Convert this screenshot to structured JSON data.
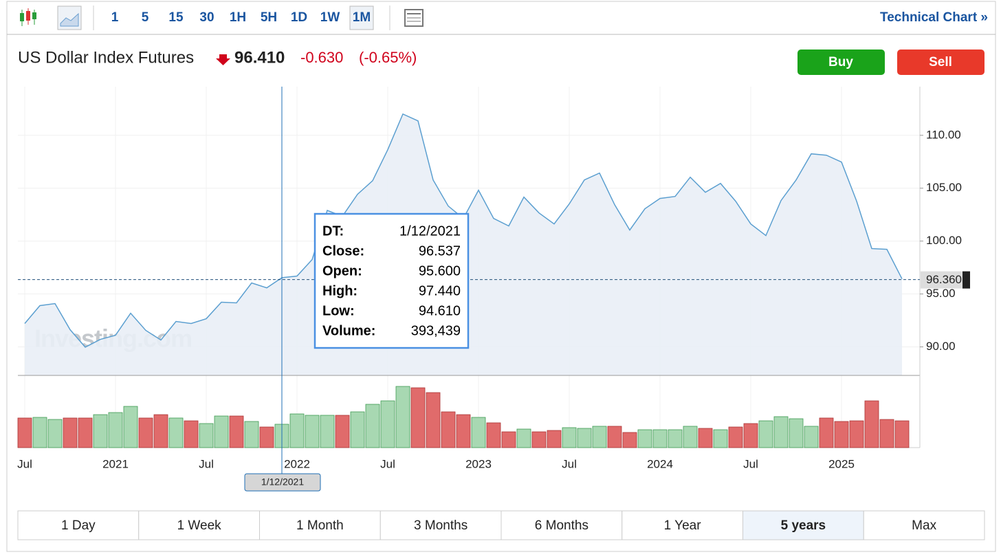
{
  "toolbar": {
    "intervals": [
      "1",
      "5",
      "15",
      "30",
      "1H",
      "5H",
      "1D",
      "1W",
      "1M"
    ],
    "selected_interval": "1M",
    "technical_chart": "Technical Chart »"
  },
  "header": {
    "title": "US Dollar Index Futures",
    "price": "96.410",
    "change": "-0.630",
    "change_pct": "(-0.65%)",
    "buy": "Buy",
    "sell": "Sell"
  },
  "chart_data": {
    "type": "area",
    "categories": [
      "Jul",
      null,
      null,
      null,
      null,
      null,
      "2021",
      null,
      null,
      null,
      null,
      null,
      "Jul",
      null,
      null,
      null,
      null,
      null,
      "2022",
      null,
      null,
      null,
      null,
      null,
      "Jul",
      null,
      null,
      null,
      null,
      null,
      "2023",
      null,
      null,
      null,
      null,
      null,
      "Jul",
      null,
      null,
      null,
      null,
      null,
      "2024",
      null,
      null,
      null,
      null,
      null,
      "Jul",
      null,
      null,
      null,
      null,
      null,
      "2025",
      null,
      null,
      null,
      null
    ],
    "values": [
      92.21,
      93.9,
      94.09,
      91.62,
      89.97,
      90.71,
      91.1,
      93.18,
      91.56,
      90.65,
      92.4,
      92.21,
      92.66,
      94.22,
      94.16,
      96.04,
      95.58,
      96.537,
      96.69,
      98.25,
      102.9,
      102.34,
      104.42,
      105.71,
      108.64,
      112.01,
      111.36,
      105.78,
      103.31,
      102.14,
      104.81,
      102.14,
      101.43,
      104.16,
      102.66,
      101.62,
      103.51,
      105.78,
      106.43,
      103.44,
      101.04,
      103.05,
      104.03,
      104.22,
      106.04,
      104.61,
      105.45,
      103.77,
      101.62,
      100.52,
      103.83,
      105.78,
      108.25,
      108.12,
      107.47,
      103.77,
      99.29,
      99.22,
      96.43
    ],
    "volume": [
      498000,
      509000,
      474000,
      498000,
      498000,
      555000,
      590000,
      694000,
      498000,
      555000,
      498000,
      451000,
      405000,
      532000,
      532000,
      440000,
      347000,
      393439,
      567000,
      544000,
      544000,
      544000,
      602000,
      729000,
      787000,
      1030000,
      1007000,
      926000,
      602000,
      555000,
      509000,
      417000,
      266000,
      312000,
      266000,
      289000,
      336000,
      324000,
      359000,
      359000,
      255000,
      301000,
      301000,
      301000,
      359000,
      324000,
      301000,
      347000,
      405000,
      451000,
      521000,
      486000,
      359000,
      498000,
      440000,
      451000,
      787000,
      474000,
      451000
    ],
    "volume_up": [
      false,
      true,
      true,
      false,
      false,
      true,
      true,
      true,
      false,
      false,
      true,
      false,
      true,
      true,
      false,
      true,
      false,
      true,
      true,
      true,
      true,
      false,
      true,
      true,
      true,
      true,
      false,
      false,
      false,
      false,
      true,
      false,
      false,
      true,
      false,
      false,
      true,
      true,
      true,
      false,
      false,
      true,
      true,
      true,
      true,
      false,
      true,
      false,
      false,
      true,
      true,
      true,
      true,
      false,
      false,
      false,
      false,
      false,
      false
    ],
    "up_color": "#a8d8b2",
    "down_color": "#e06b6b",
    "color": "#5b9fd0",
    "fill_color": "#e9eef6",
    "ylim": [
      87.3,
      114.6
    ],
    "yticks": [
      {
        "value": 90,
        "label": "90.00"
      },
      {
        "value": 95,
        "label": "95.00"
      },
      {
        "value": 100,
        "label": "100.00"
      },
      {
        "value": 105,
        "label": "105.00"
      },
      {
        "value": 110,
        "label": "110.00"
      }
    ],
    "grid": true,
    "current_price": {
      "value": 96.36,
      "label": "96.360"
    },
    "watermark": "Investing.com",
    "crosshair_date": "1/12/2021",
    "tooltip": [
      {
        "label": "DT:",
        "value": "1/12/2021"
      },
      {
        "label": "Close:",
        "value": "96.537"
      },
      {
        "label": "Open:",
        "value": "95.600"
      },
      {
        "label": "High:",
        "value": "97.440"
      },
      {
        "label": "Low:",
        "value": "94.610"
      },
      {
        "label": "Volume:",
        "value": "393,439"
      }
    ]
  },
  "ranges": [
    "1 Day",
    "1 Week",
    "1 Month",
    "3 Months",
    "6 Months",
    "1 Year",
    "5 years",
    "Max"
  ],
  "selected_range": "5 years"
}
